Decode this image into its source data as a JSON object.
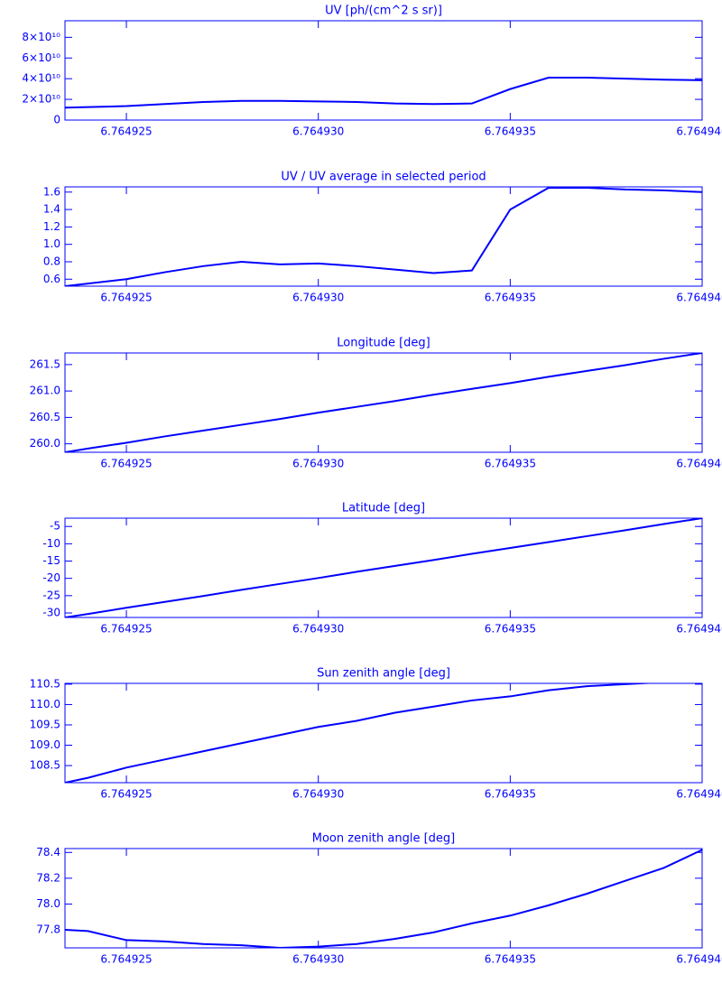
{
  "chart_data": [
    {
      "type": "line",
      "title": "UV [ph/(cm^2 s sr)]",
      "color": "#0000ff",
      "x": [
        6.7649234,
        6.764924,
        6.764925,
        6.764926,
        6.764927,
        6.764928,
        6.764929,
        6.76493,
        6.764931,
        6.764932,
        6.764933,
        6.764934,
        6.764935,
        6.764936,
        6.764937,
        6.764938,
        6.764939,
        6.76494
      ],
      "values": [
        12000000000.0,
        12500000000.0,
        13500000000.0,
        15500000000.0,
        17500000000.0,
        18500000000.0,
        18500000000.0,
        18000000000.0,
        17500000000.0,
        16000000000.0,
        15500000000.0,
        16000000000.0,
        30000000000.0,
        41000000000.0,
        41000000000.0,
        40000000000.0,
        39000000000.0,
        38500000000.0
      ],
      "xlim": [
        6.7649234,
        6.76494
      ],
      "xticks": [
        6.764925,
        {
          "value": 6.76493,
          "label": "6.764930"
        },
        6.764935,
        {
          "value": 6.76494,
          "label": "6.764940"
        }
      ],
      "ylim": [
        0,
        96000000000.0
      ],
      "yticks": [
        0,
        {
          "value": 20000000000.0,
          "label": "2×10¹⁰"
        },
        {
          "value": 40000000000.0,
          "label": "4×10¹⁰"
        },
        {
          "value": 60000000000.0,
          "label": "6×10¹⁰"
        },
        {
          "value": 80000000000.0,
          "label": "8×10¹⁰"
        }
      ]
    },
    {
      "type": "line",
      "title": "UV / UV average in selected period",
      "color": "#0000ff",
      "x": [
        6.7649234,
        6.764924,
        6.764925,
        6.764926,
        6.764927,
        6.764928,
        6.764929,
        6.76493,
        6.764931,
        6.764932,
        6.764933,
        6.764934,
        6.764935,
        6.764936,
        6.764937,
        6.764938,
        6.764939,
        6.76494
      ],
      "values": [
        0.52,
        0.55,
        0.6,
        0.68,
        0.75,
        0.8,
        0.77,
        0.78,
        0.75,
        0.71,
        0.67,
        0.7,
        1.4,
        1.65,
        1.65,
        1.63,
        1.62,
        1.6
      ],
      "xlim": [
        6.7649234,
        6.76494
      ],
      "xticks": [
        6.764925,
        {
          "value": 6.76493,
          "label": "6.764930"
        },
        6.764935,
        {
          "value": 6.76494,
          "label": "6.764940"
        }
      ],
      "ylim": [
        0.52,
        1.66
      ],
      "yticks": [
        0.6,
        0.8,
        {
          "value": 1,
          "label": "1.0"
        },
        1.2,
        1.4,
        1.6
      ]
    },
    {
      "type": "line",
      "title": "Longitude [deg]",
      "color": "#0000ff",
      "x": [
        6.7649234,
        6.764924,
        6.764925,
        6.764926,
        6.764927,
        6.764928,
        6.764929,
        6.76493,
        6.764931,
        6.764932,
        6.764933,
        6.764934,
        6.764935,
        6.764936,
        6.764937,
        6.764938,
        6.764939,
        6.76494
      ],
      "values": [
        259.84,
        259.91,
        260.02,
        260.14,
        260.25,
        260.36,
        260.47,
        260.59,
        260.7,
        260.81,
        260.93,
        261.04,
        261.15,
        261.27,
        261.38,
        261.49,
        261.61,
        261.72
      ],
      "xlim": [
        6.7649234,
        6.76494
      ],
      "xticks": [
        6.764925,
        {
          "value": 6.76493,
          "label": "6.764930"
        },
        6.764935,
        {
          "value": 6.76494,
          "label": "6.764940"
        }
      ],
      "ylim": [
        259.84,
        261.72
      ],
      "yticks": [
        {
          "value": 260,
          "label": "260.0"
        },
        260.5,
        {
          "value": 261,
          "label": "261.0"
        },
        261.5
      ]
    },
    {
      "type": "line",
      "title": "Latitude [deg]",
      "color": "#0000ff",
      "x": [
        6.7649234,
        6.764924,
        6.764925,
        6.764926,
        6.764927,
        6.764928,
        6.764929,
        6.76493,
        6.764931,
        6.764932,
        6.764933,
        6.764934,
        6.764935,
        6.764936,
        6.764937,
        6.764938,
        6.764939,
        6.76494
      ],
      "values": [
        -31.3,
        -30.3,
        -28.5,
        -26.8,
        -25.1,
        -23.3,
        -21.6,
        -19.9,
        -18.1,
        -16.4,
        -14.7,
        -12.9,
        -11.2,
        -9.5,
        -7.8,
        -6.1,
        -4.3,
        -2.6
      ],
      "xlim": [
        6.7649234,
        6.76494
      ],
      "xticks": [
        6.764925,
        {
          "value": 6.76493,
          "label": "6.764930"
        },
        6.764935,
        {
          "value": 6.76494,
          "label": "6.764940"
        }
      ],
      "ylim": [
        -31.3,
        -2.6
      ],
      "yticks": [
        -30,
        -25,
        -20,
        -15,
        -10,
        -5
      ]
    },
    {
      "type": "line",
      "title": "Sun zenith angle [deg]",
      "color": "#0000ff",
      "x": [
        6.7649234,
        6.764924,
        6.764925,
        6.764926,
        6.764927,
        6.764928,
        6.764929,
        6.76493,
        6.764931,
        6.764932,
        6.764933,
        6.764934,
        6.764935,
        6.764936,
        6.764937,
        6.764938,
        6.764939,
        6.76494
      ],
      "values": [
        108.08,
        108.2,
        108.45,
        108.65,
        108.85,
        109.05,
        109.25,
        109.45,
        109.6,
        109.8,
        109.95,
        110.1,
        110.2,
        110.35,
        110.45,
        110.5,
        110.55,
        110.6
      ],
      "xlim": [
        6.7649234,
        6.76494
      ],
      "xticks": [
        6.764925,
        {
          "value": 6.76493,
          "label": "6.764930"
        },
        6.764935,
        {
          "value": 6.76494,
          "label": "6.764940"
        }
      ],
      "ylim": [
        108.08,
        110.52
      ],
      "yticks": [
        108.5,
        {
          "value": 109,
          "label": "109.0"
        },
        109.5,
        {
          "value": 110,
          "label": "110.0"
        },
        110.5
      ]
    },
    {
      "type": "line",
      "title": "Moon zenith angle [deg]",
      "color": "#0000ff",
      "x": [
        6.7649234,
        6.764924,
        6.764925,
        6.764926,
        6.764927,
        6.764928,
        6.764929,
        6.76493,
        6.764931,
        6.764932,
        6.764933,
        6.764934,
        6.764935,
        6.764936,
        6.764937,
        6.764938,
        6.764939,
        6.76494
      ],
      "values": [
        77.8,
        77.79,
        77.72,
        77.71,
        77.69,
        77.68,
        77.66,
        77.67,
        77.69,
        77.73,
        77.78,
        77.85,
        77.91,
        77.99,
        78.08,
        78.18,
        78.28,
        78.42
      ],
      "xlim": [
        6.7649234,
        6.76494
      ],
      "xticks": [
        6.764925,
        {
          "value": 6.76493,
          "label": "6.764930"
        },
        6.764935,
        {
          "value": 6.76494,
          "label": "6.764940"
        }
      ],
      "ylim": [
        77.66,
        78.43
      ],
      "yticks": [
        77.8,
        {
          "value": 78,
          "label": "78.0"
        },
        78.2,
        78.4
      ]
    }
  ]
}
